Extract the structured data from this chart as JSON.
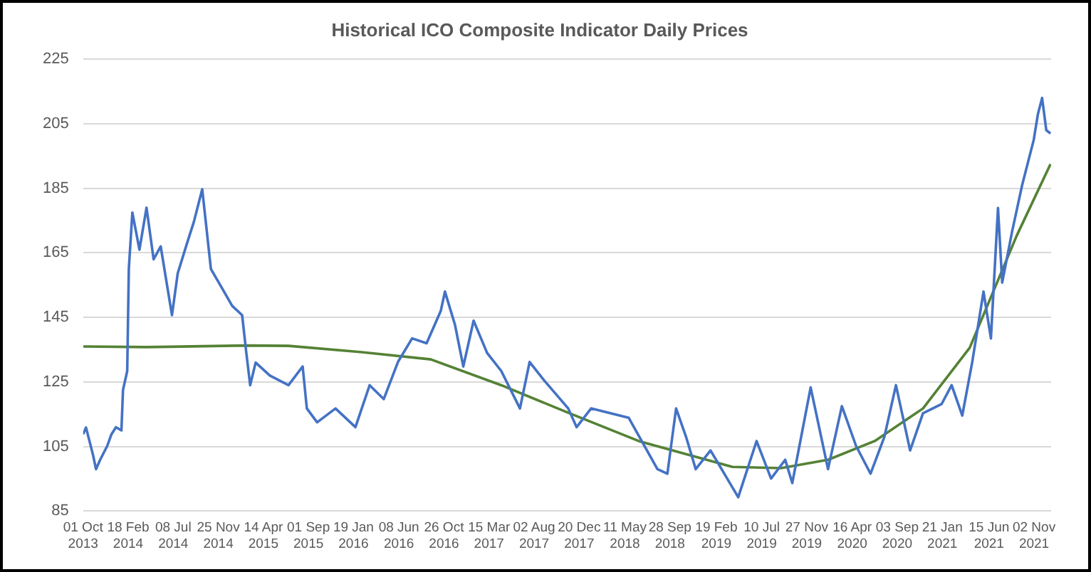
{
  "chart_data": {
    "type": "line",
    "title": "Historical ICO Composite Indicator Daily Prices",
    "xlim": [
      "2013-10-01",
      "2021-12-25"
    ],
    "xticks": [
      {
        "value": "2013-10-01",
        "label": "01 Oct 2013"
      },
      {
        "value": "2014-02-18",
        "label": "18 Feb 2014"
      },
      {
        "value": "2014-07-08",
        "label": "08 Jul 2014"
      },
      {
        "value": "2014-11-25",
        "label": "25 Nov 2014"
      },
      {
        "value": "2015-04-14",
        "label": "14 Apr 2015"
      },
      {
        "value": "2015-09-01",
        "label": "01 Sep 2015"
      },
      {
        "value": "2016-01-19",
        "label": "19 Jan 2016"
      },
      {
        "value": "2016-06-08",
        "label": "08 Jun 2016"
      },
      {
        "value": "2016-10-26",
        "label": "26 Oct 2016"
      },
      {
        "value": "2017-03-15",
        "label": "15 Mar 2017"
      },
      {
        "value": "2017-08-02",
        "label": "02 Aug 2017"
      },
      {
        "value": "2017-12-20",
        "label": "20 Dec 2017"
      },
      {
        "value": "2018-05-11",
        "label": "11 May 2018"
      },
      {
        "value": "2018-09-28",
        "label": "28 Sep 2018"
      },
      {
        "value": "2019-02-19",
        "label": "19 Feb 2019"
      },
      {
        "value": "2019-07-10",
        "label": "10 Jul 2019"
      },
      {
        "value": "2019-11-27",
        "label": "27 Nov 2019"
      },
      {
        "value": "2020-04-16",
        "label": "16 Apr 2020"
      },
      {
        "value": "2020-09-03",
        "label": "03 Sep 2020"
      },
      {
        "value": "2021-01-21",
        "label": "21 Jan 2021"
      },
      {
        "value": "2021-06-15",
        "label": "15 Jun 2021"
      },
      {
        "value": "2021-11-02",
        "label": "02 Nov 2021"
      }
    ],
    "ylim": [
      85,
      225
    ],
    "yticks": [
      85,
      105,
      125,
      145,
      165,
      185,
      205,
      225
    ],
    "grid": "y",
    "series": [
      {
        "color": "#4472c4",
        "x": [
          "2013-10-01",
          "2013-10-10",
          "2013-11-01",
          "2013-11-10",
          "2013-11-23",
          "2013-12-15",
          "2013-12-28",
          "2014-01-11",
          "2014-01-28",
          "2014-02-02",
          "2014-02-15",
          "2014-02-20",
          "2014-03-03",
          "2014-03-25",
          "2014-04-16",
          "2014-05-08",
          "2014-05-30",
          "2014-07-04",
          "2014-07-22",
          "2014-08-18",
          "2014-09-10",
          "2014-10-06",
          "2014-11-02",
          "2014-12-07",
          "2015-01-07",
          "2015-02-07",
          "2015-02-20",
          "2015-03-04",
          "2015-03-21",
          "2015-05-04",
          "2015-07-01",
          "2015-08-14",
          "2015-08-27",
          "2015-09-28",
          "2015-11-24",
          "2016-01-25",
          "2016-03-09",
          "2016-04-22",
          "2016-06-05",
          "2016-07-19",
          "2016-09-02",
          "2016-10-16",
          "2016-10-29",
          "2016-11-29",
          "2016-12-25",
          "2017-01-26",
          "2017-03-09",
          "2017-04-22",
          "2017-06-19",
          "2017-07-19",
          "2017-09-02",
          "2017-11-16",
          "2017-12-12",
          "2018-01-26",
          "2018-05-23",
          "2018-08-20",
          "2018-09-20",
          "2018-10-17",
          "2018-11-17",
          "2018-12-17",
          "2019-02-01",
          "2019-04-28",
          "2019-06-24",
          "2019-08-08",
          "2019-09-21",
          "2019-10-13",
          "2019-12-09",
          "2020-02-01",
          "2020-03-15",
          "2020-04-28",
          "2020-06-12",
          "2020-07-25",
          "2020-08-30",
          "2020-10-13",
          "2020-11-22",
          "2021-01-19",
          "2021-02-19",
          "2021-03-24",
          "2021-04-24",
          "2021-05-29",
          "2021-06-21",
          "2021-07-13",
          "2021-07-26",
          "2021-08-26",
          "2021-09-26",
          "2021-11-01",
          "2021-11-14",
          "2021-11-27",
          "2021-12-10",
          "2021-12-23"
        ],
        "values": [
          108.8,
          110.9,
          102.3,
          98,
          100.9,
          105.2,
          108.8,
          111,
          110,
          122.6,
          128.4,
          160,
          177.5,
          166,
          179,
          163,
          167,
          145.7,
          158.7,
          167.4,
          174.6,
          184.7,
          160,
          154,
          148.6,
          145.7,
          134,
          124,
          131,
          127,
          124,
          129.8,
          116.8,
          112.5,
          116.8,
          111,
          124,
          119.7,
          131.2,
          138.5,
          137,
          147,
          153,
          142.8,
          129.8,
          144,
          134,
          128.4,
          116.8,
          131.2,
          125.5,
          116.8,
          111,
          116.8,
          113.9,
          98,
          96.6,
          116.8,
          108,
          98,
          103.8,
          89.3,
          106.7,
          95.1,
          100.9,
          93.7,
          123.3,
          98,
          117.5,
          105.2,
          96.6,
          108,
          124,
          103.8,
          115.3,
          118.2,
          124,
          114.6,
          131.2,
          153,
          138.5,
          178.9,
          155.8,
          171.7,
          186,
          200,
          208,
          213,
          203,
          202
        ]
      },
      {
        "color": "#548235",
        "x": [
          "2013-10-01",
          "2014-04-16",
          "2015-02-20",
          "2015-07-01",
          "2016-02-08",
          "2016-09-15",
          "2017-04-22",
          "2017-11-20",
          "2018-06-23",
          "2019-04-10",
          "2019-09-08",
          "2020-02-01",
          "2020-06-25",
          "2020-11-22",
          "2021-04-16",
          "2021-09-09",
          "2021-12-23"
        ],
        "values": [
          136,
          135.8,
          136.3,
          136.2,
          134.3,
          132,
          124,
          115.3,
          106.7,
          98.7,
          98.3,
          100.9,
          106.7,
          116.8,
          135.6,
          170.3,
          192.5
        ]
      }
    ]
  }
}
